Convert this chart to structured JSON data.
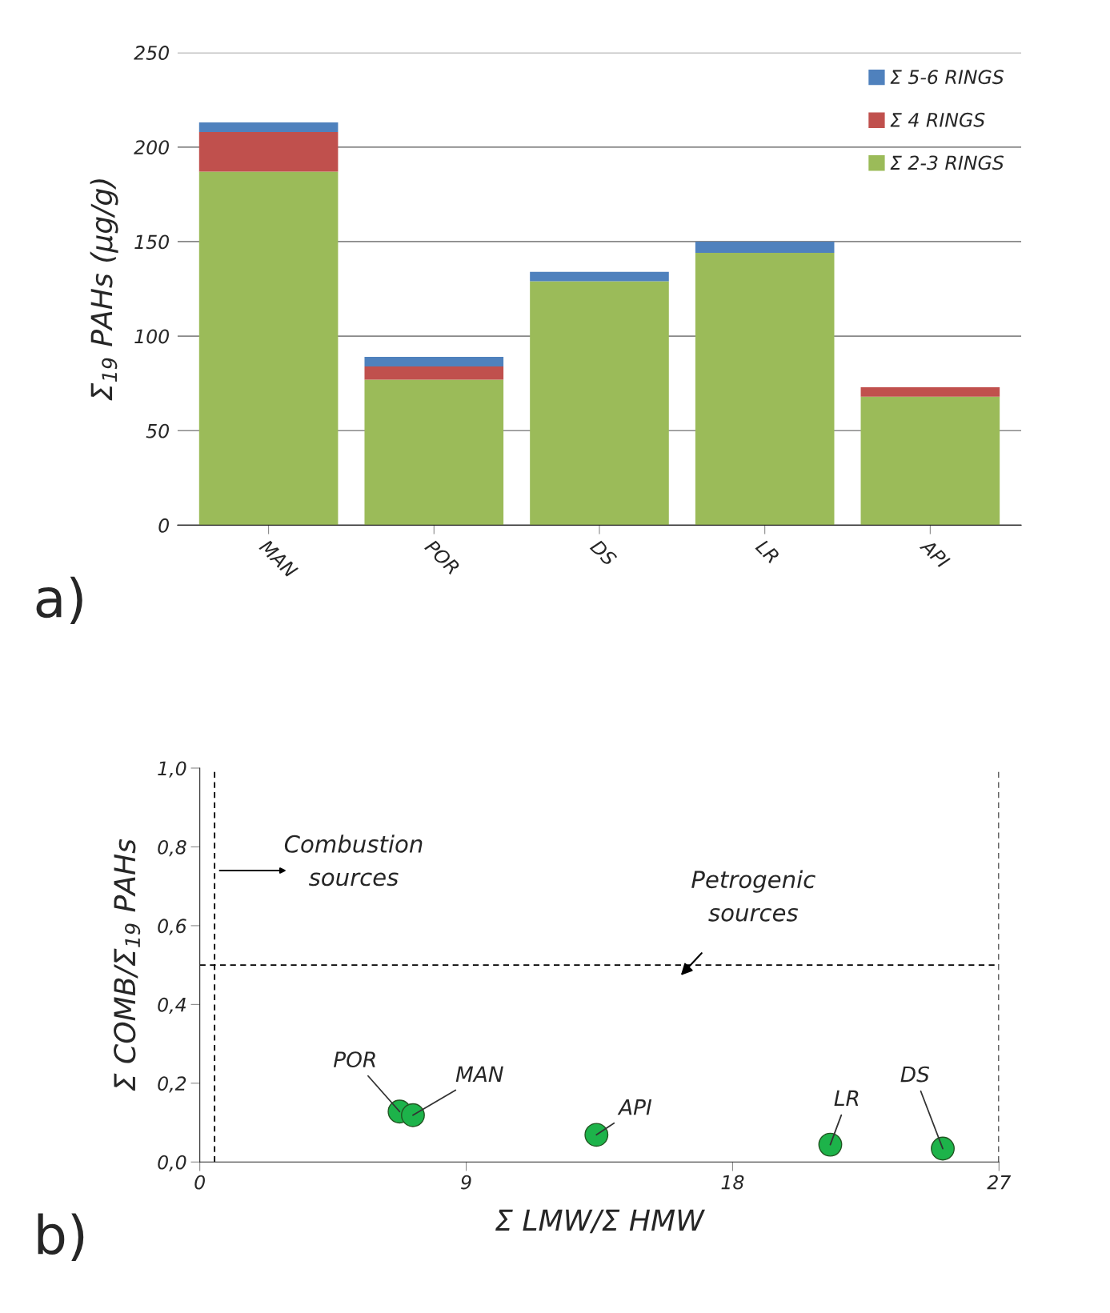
{
  "chart_data": [
    {
      "type": "bar",
      "stacked": true,
      "categories": [
        "MAN",
        "POR",
        "DS",
        "LR",
        "API"
      ],
      "ylabel": "Σ$_{19}$ PAHs (µg/g)",
      "series": [
        {
          "name": "Σ 2-3 RINGS",
          "color": "#9bbb59",
          "values": [
            187,
            77,
            129,
            144,
            68
          ]
        },
        {
          "name": "Σ 4 RINGS",
          "color": "#c0504d",
          "values": [
            21,
            7,
            0,
            0,
            5
          ]
        },
        {
          "name": "Σ 5-6 RINGS",
          "color": "#4f81bd",
          "values": [
            5,
            5,
            5,
            6,
            0
          ]
        }
      ],
      "ylim": [
        0,
        250
      ],
      "yticks": [
        0,
        50,
        100,
        150,
        200,
        250
      ],
      "grid": "y",
      "legend": "top right",
      "annotations": [
        "a)"
      ]
    },
    {
      "type": "scatter",
      "xlabel": "Σ LMW/Σ HMW",
      "ylabel": "Σ COMB/Σ$_{19}$ PAHs",
      "marker": "circle",
      "series": [
        {
          "color": "#1db34a",
          "x": [
            6.75,
            7.2,
            13.4,
            21.3,
            25.1
          ],
          "values": [
            0.128,
            0.119,
            0.069,
            0.044,
            0.034
          ]
        }
      ],
      "xlim": [
        0,
        27
      ],
      "xticks": [
        0,
        9,
        18,
        27
      ],
      "ylim": [
        0,
        1.0
      ],
      "yticks": [
        {
          "value": 0,
          "label": "0,0"
        },
        {
          "value": 0.2,
          "label": "0,2"
        },
        {
          "value": 0.4,
          "label": "0,4"
        },
        {
          "value": 0.6,
          "label": "0,6"
        },
        {
          "value": 0.8,
          "label": "0,8"
        },
        {
          "value": 1.0,
          "label": "1,0"
        }
      ],
      "grid": false,
      "ref_lines": [
        {
          "axis": "x",
          "value": 0.5,
          "line_style": "dashed",
          "color": "#000000"
        },
        {
          "axis": "y",
          "value": 0.5,
          "line_style": "dashed",
          "color": "#000000"
        },
        {
          "axis": "x",
          "value": 27,
          "line_style": "dashed",
          "color": "#000000"
        }
      ],
      "annotations": [
        {
          "text": "POR",
          "x": 6.75,
          "y": 0.128
        },
        {
          "text": "MAN",
          "x": 7.2,
          "y": 0.119
        },
        {
          "text": "API",
          "x": 13.4,
          "y": 0.069
        },
        {
          "text": "LR",
          "x": 21.3,
          "y": 0.044
        },
        {
          "text": "DS",
          "x": 25.1,
          "y": 0.034
        },
        "Combustion\nsources",
        "Petrogenic\nsources",
        "b)"
      ]
    }
  ]
}
